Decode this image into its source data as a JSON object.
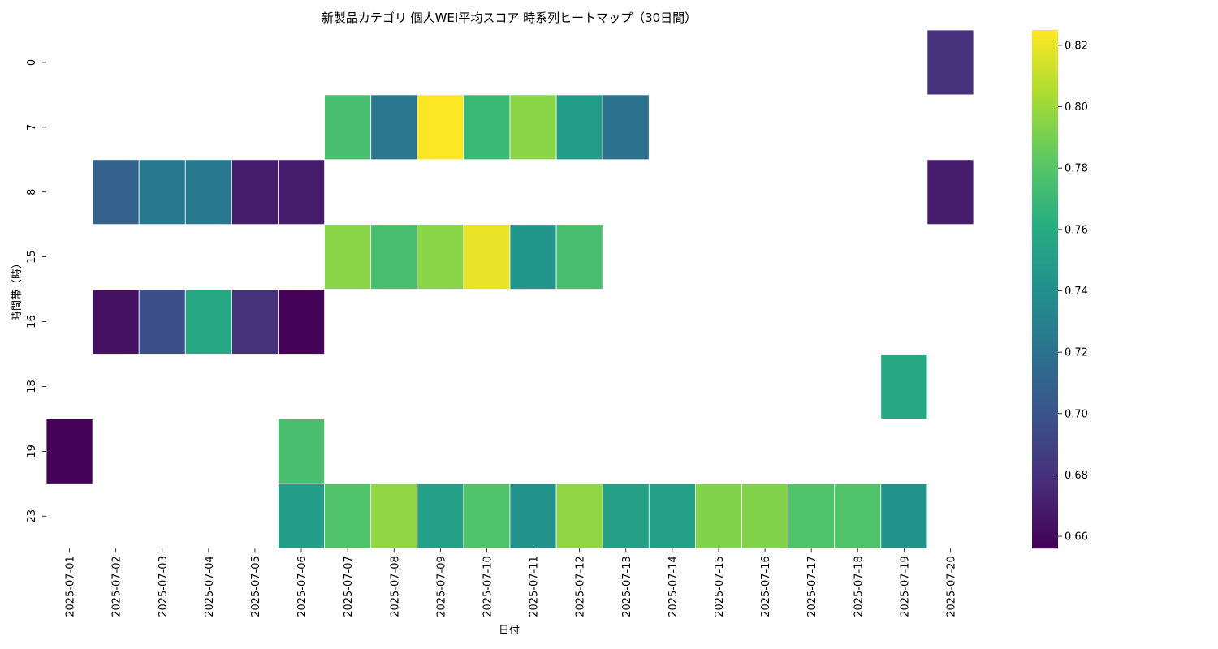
{
  "chart_data": {
    "type": "heatmap",
    "title": "新製品カテゴリ 個人WEI平均スコア 時系列ヒートマップ（30日間）",
    "xlabel": "日付",
    "ylabel": "時間帯（時）",
    "x": [
      "2025-07-01",
      "2025-07-02",
      "2025-07-03",
      "2025-07-04",
      "2025-07-05",
      "2025-07-06",
      "2025-07-07",
      "2025-07-08",
      "2025-07-09",
      "2025-07-10",
      "2025-07-11",
      "2025-07-12",
      "2025-07-13",
      "2025-07-14",
      "2025-07-15",
      "2025-07-16",
      "2025-07-17",
      "2025-07-18",
      "2025-07-19",
      "2025-07-20"
    ],
    "y": [
      "0",
      "7",
      "8",
      "15",
      "16",
      "18",
      "19",
      "23"
    ],
    "values": [
      [
        null,
        null,
        null,
        null,
        null,
        null,
        null,
        null,
        null,
        null,
        null,
        null,
        null,
        null,
        null,
        null,
        null,
        null,
        null,
        0.68
      ],
      [
        null,
        null,
        null,
        null,
        null,
        null,
        0.775,
        0.723,
        0.825,
        0.77,
        0.795,
        0.75,
        0.72,
        null,
        null,
        null,
        null,
        null,
        null,
        null
      ],
      [
        null,
        0.71,
        0.725,
        0.725,
        0.67,
        0.67,
        null,
        null,
        null,
        null,
        null,
        null,
        null,
        null,
        null,
        null,
        null,
        null,
        null,
        0.67
      ],
      [
        null,
        null,
        null,
        null,
        null,
        null,
        0.795,
        0.775,
        0.795,
        0.82,
        0.745,
        0.775,
        null,
        null,
        null,
        null,
        null,
        null,
        null,
        null
      ],
      [
        null,
        0.664,
        0.697,
        0.758,
        0.68,
        0.657,
        null,
        null,
        null,
        null,
        null,
        null,
        null,
        null,
        null,
        null,
        null,
        null,
        null,
        null
      ],
      [
        null,
        null,
        null,
        null,
        null,
        null,
        null,
        null,
        null,
        null,
        null,
        null,
        null,
        null,
        null,
        null,
        null,
        null,
        0.758,
        null
      ],
      [
        0.657,
        null,
        null,
        null,
        null,
        0.775,
        null,
        null,
        null,
        null,
        null,
        null,
        null,
        null,
        null,
        null,
        null,
        null,
        null,
        null
      ],
      [
        null,
        null,
        null,
        null,
        null,
        0.75,
        0.778,
        0.797,
        0.752,
        0.778,
        0.742,
        0.797,
        0.752,
        0.752,
        0.793,
        0.793,
        0.778,
        0.778,
        0.743,
        null
      ]
    ],
    "colormap": "viridis",
    "vmin": 0.656,
    "vmax": 0.825,
    "colorbar_ticks": [
      "0.66",
      "0.68",
      "0.70",
      "0.72",
      "0.74",
      "0.76",
      "0.78",
      "0.80",
      "0.82"
    ]
  }
}
